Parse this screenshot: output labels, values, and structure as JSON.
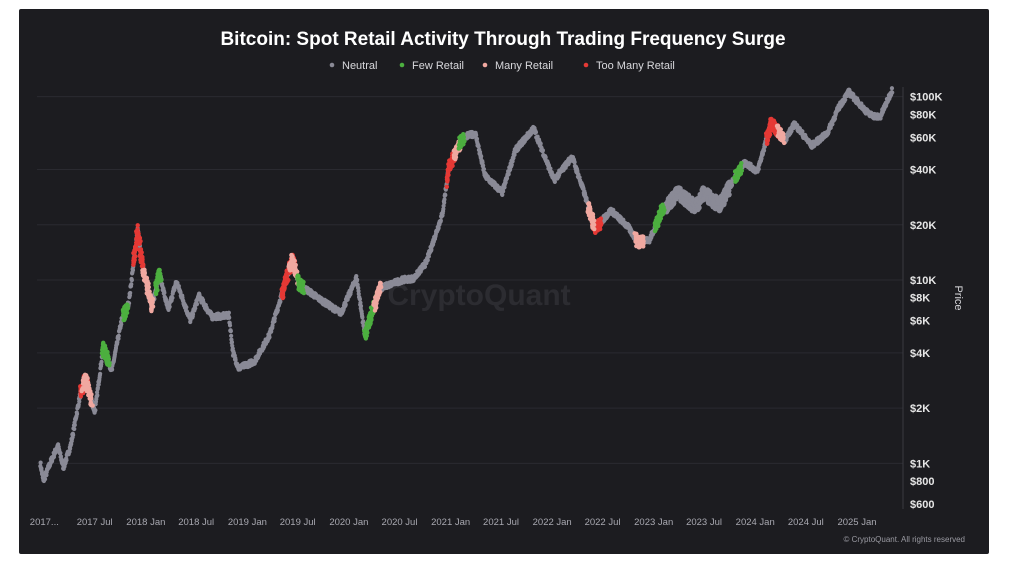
{
  "chart_data": {
    "type": "scatter",
    "title": "Bitcoin: Spot Retail Activity Through Trading Frequency Surge",
    "ylabel": "Price",
    "y_scale": "log",
    "ylim": [
      600,
      110000
    ],
    "xlim": [
      "2016-12-20",
      "2025-06-01"
    ],
    "grid": true,
    "legend_placement": "top",
    "watermark": "CryptoQuant",
    "copyright": "© CryptoQuant. All rights reserved",
    "y_ticks": [
      {
        "value": 600,
        "label": "$600"
      },
      {
        "value": 800,
        "label": "$800"
      },
      {
        "value": 1000,
        "label": "$1K"
      },
      {
        "value": 2000,
        "label": "$2K"
      },
      {
        "value": 4000,
        "label": "$4K"
      },
      {
        "value": 6000,
        "label": "$6K"
      },
      {
        "value": 8000,
        "label": "$8K"
      },
      {
        "value": 10000,
        "label": "$10K"
      },
      {
        "value": 20000,
        "label": "$20K"
      },
      {
        "value": 40000,
        "label": "$40K"
      },
      {
        "value": 60000,
        "label": "$60K"
      },
      {
        "value": 80000,
        "label": "$80K"
      },
      {
        "value": 100000,
        "label": "$100K"
      }
    ],
    "x_ticks": [
      {
        "date": "2017-01-01",
        "label": "2017..."
      },
      {
        "date": "2017-07-01",
        "label": "2017 Jul"
      },
      {
        "date": "2018-01-01",
        "label": "2018 Jan"
      },
      {
        "date": "2018-07-01",
        "label": "2018 Jul"
      },
      {
        "date": "2019-01-01",
        "label": "2019 Jan"
      },
      {
        "date": "2019-07-01",
        "label": "2019 Jul"
      },
      {
        "date": "2020-01-01",
        "label": "2020 Jan"
      },
      {
        "date": "2020-07-01",
        "label": "2020 Jul"
      },
      {
        "date": "2021-01-01",
        "label": "2021 Jan"
      },
      {
        "date": "2021-07-01",
        "label": "2021 Jul"
      },
      {
        "date": "2022-01-01",
        "label": "2022 Jan"
      },
      {
        "date": "2022-07-01",
        "label": "2022 Jul"
      },
      {
        "date": "2023-01-01",
        "label": "2023 Jan"
      },
      {
        "date": "2023-07-01",
        "label": "2023 Jul"
      },
      {
        "date": "2024-01-01",
        "label": "2024 Jan"
      },
      {
        "date": "2024-07-01",
        "label": "2024 Jul"
      },
      {
        "date": "2025-01-01",
        "label": "2025 Jan"
      }
    ],
    "series": [
      {
        "name": "Neutral",
        "color": "#8a8a96"
      },
      {
        "name": "Few Retail",
        "color": "#4caf3f"
      },
      {
        "name": "Many Retail",
        "color": "#f0a8a0"
      },
      {
        "name": "Too Many Retail",
        "color": "#e53935"
      }
    ],
    "price_path": [
      [
        "2017-01-01",
        1000
      ],
      [
        "2017-01-12",
        800
      ],
      [
        "2017-02-05",
        1000
      ],
      [
        "2017-03-05",
        1250
      ],
      [
        "2017-03-25",
        950
      ],
      [
        "2017-04-20",
        1250
      ],
      [
        "2017-05-25",
        2400
      ],
      [
        "2017-06-12",
        2900
      ],
      [
        "2017-07-16",
        1900
      ],
      [
        "2017-08-15",
        4300
      ],
      [
        "2017-09-15",
        3200
      ],
      [
        "2017-10-20",
        6000
      ],
      [
        "2017-11-15",
        7500
      ],
      [
        "2017-12-17",
        19000
      ],
      [
        "2017-12-30",
        13000
      ],
      [
        "2018-02-06",
        7000
      ],
      [
        "2018-03-05",
        11000
      ],
      [
        "2018-04-05",
        6800
      ],
      [
        "2018-05-05",
        9800
      ],
      [
        "2018-06-25",
        6000
      ],
      [
        "2018-07-25",
        8200
      ],
      [
        "2018-09-10",
        6300
      ],
      [
        "2018-11-10",
        6400
      ],
      [
        "2018-11-25",
        4000
      ],
      [
        "2018-12-15",
        3300
      ],
      [
        "2019-02-10",
        3600
      ],
      [
        "2019-04-05",
        5000
      ],
      [
        "2019-06-26",
        13000
      ],
      [
        "2019-07-20",
        9500
      ],
      [
        "2019-09-25",
        8000
      ],
      [
        "2019-12-18",
        6600
      ],
      [
        "2020-02-12",
        10300
      ],
      [
        "2020-03-13",
        5000
      ],
      [
        "2020-05-05",
        9000
      ],
      [
        "2020-07-25",
        10000
      ],
      [
        "2020-09-05",
        10200
      ],
      [
        "2020-10-20",
        12500
      ],
      [
        "2020-12-17",
        23000
      ],
      [
        "2021-01-08",
        41000
      ],
      [
        "2021-02-21",
        57000
      ],
      [
        "2021-03-15",
        61000
      ],
      [
        "2021-04-14",
        63000
      ],
      [
        "2021-05-19",
        37000
      ],
      [
        "2021-07-20",
        30000
      ],
      [
        "2021-09-05",
        51000
      ],
      [
        "2021-11-10",
        67000
      ],
      [
        "2022-01-22",
        35000
      ],
      [
        "2022-03-28",
        47000
      ],
      [
        "2022-05-10",
        30000
      ],
      [
        "2022-06-18",
        19000
      ],
      [
        "2022-08-15",
        24000
      ],
      [
        "2022-10-15",
        19500
      ],
      [
        "2022-11-21",
        16000
      ],
      [
        "2023-01-01",
        16600
      ],
      [
        "2023-02-15",
        24000
      ],
      [
        "2023-04-14",
        30000
      ],
      [
        "2023-06-15",
        25000
      ],
      [
        "2023-07-15",
        30000
      ],
      [
        "2023-09-10",
        25500
      ],
      [
        "2023-10-24",
        34000
      ],
      [
        "2023-12-08",
        44000
      ],
      [
        "2024-01-23",
        39000
      ],
      [
        "2024-03-13",
        72000
      ],
      [
        "2024-05-01",
        58000
      ],
      [
        "2024-06-05",
        71000
      ],
      [
        "2024-08-05",
        54000
      ],
      [
        "2024-09-30",
        63000
      ],
      [
        "2024-11-12",
        88000
      ],
      [
        "2024-12-17",
        106000
      ],
      [
        "2025-02-28",
        80000
      ],
      [
        "2025-04-08",
        77000
      ],
      [
        "2025-05-22",
        109000
      ]
    ],
    "retail_clusters": [
      {
        "series": "Too Many Retail",
        "start": "2017-05-25",
        "end": "2017-06-20"
      },
      {
        "series": "Many Retail",
        "start": "2017-06-01",
        "end": "2017-07-05"
      },
      {
        "series": "Few Retail",
        "start": "2017-08-12",
        "end": "2017-09-05"
      },
      {
        "series": "Few Retail",
        "start": "2017-10-25",
        "end": "2017-11-12"
      },
      {
        "series": "Too Many Retail",
        "start": "2017-12-01",
        "end": "2018-01-05"
      },
      {
        "series": "Many Retail",
        "start": "2018-01-05",
        "end": "2018-02-10"
      },
      {
        "series": "Few Retail",
        "start": "2018-02-20",
        "end": "2018-03-10"
      },
      {
        "series": "Too Many Retail",
        "start": "2019-05-20",
        "end": "2019-07-05"
      },
      {
        "series": "Many Retail",
        "start": "2019-06-15",
        "end": "2019-07-15"
      },
      {
        "series": "Few Retail",
        "start": "2019-07-15",
        "end": "2019-08-05"
      },
      {
        "series": "Few Retail",
        "start": "2020-03-12",
        "end": "2020-04-20"
      },
      {
        "series": "Many Retail",
        "start": "2020-04-15",
        "end": "2020-05-10"
      },
      {
        "series": "Too Many Retail",
        "start": "2021-01-01",
        "end": "2021-01-28"
      },
      {
        "series": "Many Retail",
        "start": "2021-01-28",
        "end": "2021-02-15"
      },
      {
        "series": "Few Retail",
        "start": "2021-02-15",
        "end": "2021-03-05"
      },
      {
        "series": "Too Many Retail",
        "start": "2022-06-10",
        "end": "2022-07-10"
      },
      {
        "series": "Many Retail",
        "start": "2022-05-25",
        "end": "2022-06-15"
      },
      {
        "series": "Many Retail",
        "start": "2022-11-10",
        "end": "2022-12-10"
      },
      {
        "series": "Few Retail",
        "start": "2023-01-20",
        "end": "2023-02-20"
      },
      {
        "series": "Few Retail",
        "start": "2023-11-05",
        "end": "2023-11-25"
      },
      {
        "series": "Too Many Retail",
        "start": "2024-02-25",
        "end": "2024-04-10"
      },
      {
        "series": "Many Retail",
        "start": "2024-04-05",
        "end": "2024-04-25"
      }
    ]
  }
}
